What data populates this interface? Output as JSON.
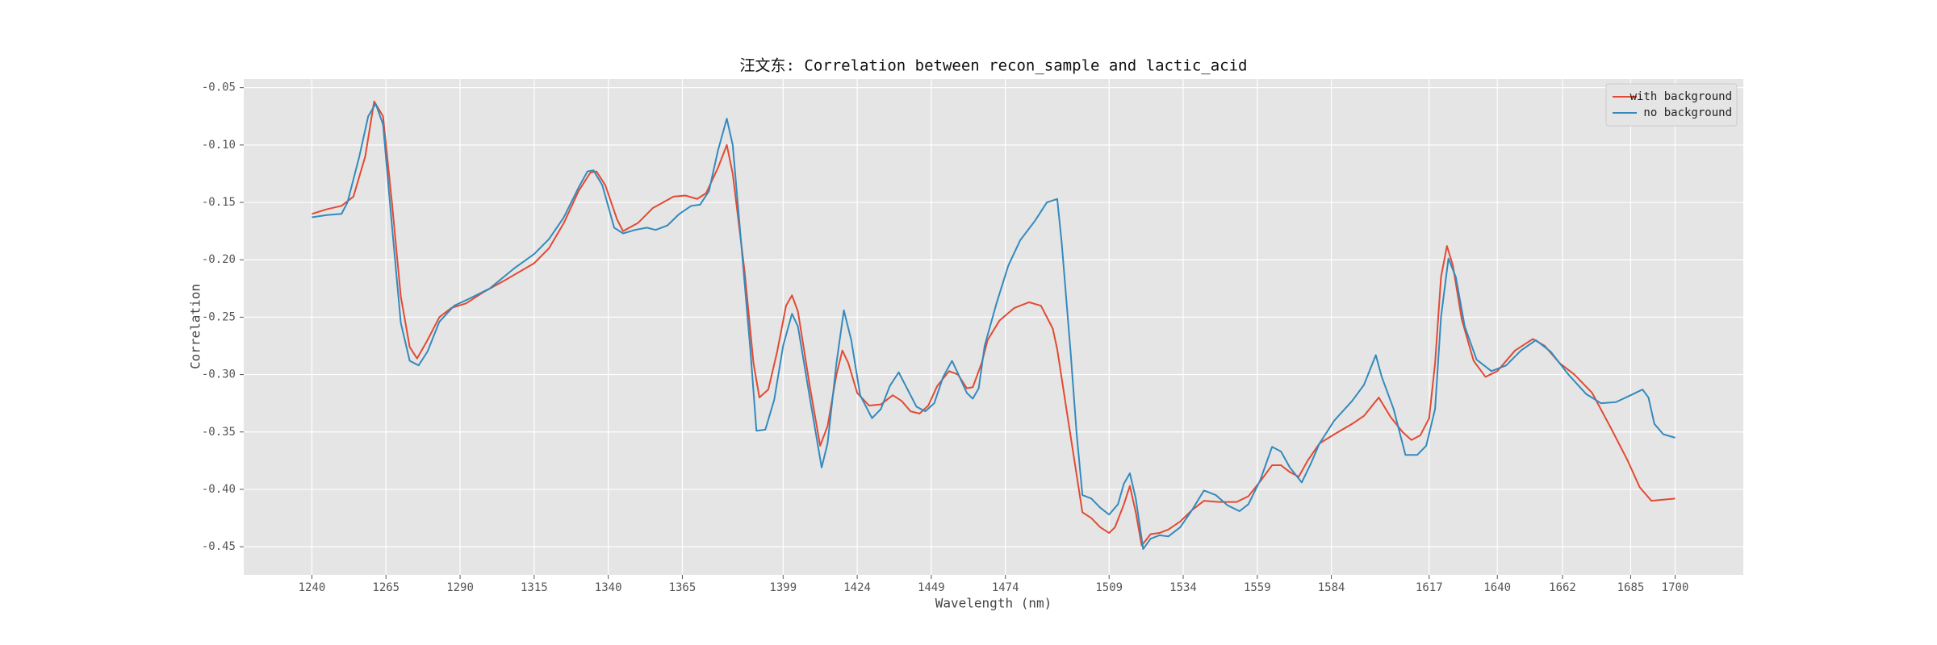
{
  "chart_data": {
    "type": "line",
    "title": "汪文东: Correlation between recon_sample and lactic_acid",
    "xlabel": "Wavelength (nm)",
    "ylabel": "Correlation",
    "xlim": [
      1217,
      1723
    ],
    "ylim": [
      -0.4745,
      -0.0425
    ],
    "xticks": [
      1240,
      1265,
      1290,
      1315,
      1340,
      1365,
      1399,
      1424,
      1449,
      1474,
      1509,
      1534,
      1559,
      1584,
      1617,
      1640,
      1662,
      1685,
      1700
    ],
    "yticks": [
      -0.05,
      {
        "value": -0.1,
        "label": "-0.10"
      },
      -0.15,
      {
        "value": -0.2,
        "label": "-0.20"
      },
      -0.25,
      {
        "value": -0.3,
        "label": "-0.30"
      },
      -0.35,
      {
        "value": -0.4,
        "label": "-0.40"
      },
      -0.45
    ],
    "grid": true,
    "legend": "upper right",
    "series": [
      {
        "name": "with background",
        "color": "#E24A33",
        "x": [
          1240,
          1245,
          1250,
          1254,
          1258,
          1261,
          1264,
          1267,
          1270,
          1273,
          1275.5,
          1279,
          1283,
          1287,
          1292,
          1298,
          1305,
          1315,
          1320,
          1325,
          1330,
          1334,
          1336,
          1339,
          1343,
          1345,
          1350,
          1355,
          1362,
          1366,
          1370,
          1373,
          1377,
          1380,
          1382,
          1386,
          1389,
          1391,
          1394,
          1397,
          1400,
          1402,
          1404,
          1408,
          1411.5,
          1414,
          1417,
          1419,
          1421,
          1424,
          1428,
          1432,
          1436,
          1439,
          1442,
          1445,
          1448,
          1451,
          1455,
          1458,
          1461,
          1463,
          1466,
          1468,
          1472,
          1477,
          1482,
          1486,
          1490,
          1491.5,
          1494,
          1497,
          1500,
          1503,
          1506,
          1509,
          1511,
          1514,
          1516,
          1518,
          1520,
          1523,
          1526,
          1529,
          1533,
          1537,
          1541,
          1546,
          1552,
          1556,
          1560,
          1564,
          1567,
          1570,
          1573,
          1576,
          1580,
          1585,
          1591,
          1595,
          1600,
          1604,
          1608,
          1611,
          1614,
          1617,
          1619,
          1621,
          1623,
          1625,
          1628,
          1632,
          1636,
          1640,
          1646,
          1652,
          1656,
          1661,
          1666,
          1672,
          1678,
          1684,
          1688,
          1692,
          1696,
          1700
        ],
        "values": [
          -0.16,
          -0.156,
          -0.153,
          -0.145,
          -0.11,
          -0.062,
          -0.075,
          -0.15,
          -0.232,
          -0.276,
          -0.286,
          -0.27,
          -0.25,
          -0.242,
          -0.238,
          -0.228,
          -0.218,
          -0.203,
          -0.19,
          -0.168,
          -0.14,
          -0.124,
          -0.123,
          -0.135,
          -0.165,
          -0.175,
          -0.168,
          -0.155,
          -0.145,
          -0.144,
          -0.147,
          -0.142,
          -0.12,
          -0.1,
          -0.125,
          -0.21,
          -0.29,
          -0.32,
          -0.313,
          -0.28,
          -0.24,
          -0.231,
          -0.245,
          -0.31,
          -0.362,
          -0.345,
          -0.3,
          -0.279,
          -0.29,
          -0.316,
          -0.327,
          -0.326,
          -0.318,
          -0.323,
          -0.332,
          -0.334,
          -0.327,
          -0.31,
          -0.297,
          -0.3,
          -0.312,
          -0.311,
          -0.29,
          -0.27,
          -0.253,
          -0.242,
          -0.237,
          -0.24,
          -0.26,
          -0.278,
          -0.32,
          -0.37,
          -0.42,
          -0.425,
          -0.433,
          -0.438,
          -0.433,
          -0.413,
          -0.397,
          -0.42,
          -0.449,
          -0.439,
          -0.438,
          -0.435,
          -0.428,
          -0.418,
          -0.41,
          -0.411,
          -0.411,
          -0.406,
          -0.393,
          -0.379,
          -0.379,
          -0.385,
          -0.389,
          -0.375,
          -0.36,
          -0.352,
          -0.343,
          -0.336,
          -0.32,
          -0.337,
          -0.35,
          -0.357,
          -0.353,
          -0.338,
          -0.29,
          -0.215,
          -0.188,
          -0.205,
          -0.252,
          -0.288,
          -0.302,
          -0.297,
          -0.279,
          -0.269,
          -0.275,
          -0.29,
          -0.3,
          -0.316,
          -0.345,
          -0.375,
          -0.398,
          -0.41,
          -0.409,
          -0.408
        ]
      },
      {
        "name": "no background",
        "color": "#348ABD",
        "x": [
          1240,
          1245,
          1250,
          1252,
          1256,
          1259,
          1261.5,
          1264,
          1267,
          1270,
          1273,
          1276,
          1279,
          1283,
          1288,
          1293,
          1300,
          1308,
          1315,
          1320,
          1325,
          1330,
          1333,
          1335,
          1338,
          1342,
          1345,
          1349,
          1353,
          1356,
          1360,
          1364,
          1368,
          1371,
          1374,
          1377,
          1380,
          1382,
          1385,
          1388,
          1390,
          1393,
          1396,
          1399,
          1402,
          1404,
          1408,
          1412,
          1414,
          1417,
          1419.5,
          1422,
          1425,
          1429,
          1432,
          1435,
          1438,
          1441,
          1444,
          1447,
          1450,
          1453,
          1456,
          1458,
          1461,
          1463,
          1465,
          1467,
          1471,
          1475,
          1479,
          1484,
          1488,
          1491.5,
          1493,
          1496,
          1498,
          1500,
          1503,
          1506,
          1509,
          1512,
          1514,
          1516,
          1518,
          1520.5,
          1523,
          1526,
          1529,
          1533,
          1537,
          1541,
          1545,
          1549,
          1553,
          1556,
          1560,
          1564,
          1567,
          1570,
          1574,
          1577,
          1580,
          1585,
          1591,
          1595,
          1599,
          1601,
          1605,
          1609,
          1613,
          1616,
          1619,
          1621,
          1623.5,
          1626,
          1629,
          1633,
          1638,
          1643,
          1648,
          1653,
          1658,
          1664,
          1670,
          1675,
          1680,
          1685,
          1689,
          1691,
          1693,
          1696,
          1700
        ],
        "values": [
          -0.163,
          -0.161,
          -0.16,
          -0.15,
          -0.11,
          -0.075,
          -0.064,
          -0.082,
          -0.17,
          -0.255,
          -0.288,
          -0.292,
          -0.28,
          -0.254,
          -0.24,
          -0.234,
          -0.225,
          -0.208,
          -0.195,
          -0.182,
          -0.163,
          -0.137,
          -0.123,
          -0.122,
          -0.135,
          -0.172,
          -0.177,
          -0.174,
          -0.172,
          -0.174,
          -0.17,
          -0.16,
          -0.153,
          -0.152,
          -0.14,
          -0.105,
          -0.077,
          -0.1,
          -0.19,
          -0.28,
          -0.349,
          -0.348,
          -0.322,
          -0.275,
          -0.247,
          -0.258,
          -0.32,
          -0.381,
          -0.36,
          -0.29,
          -0.244,
          -0.27,
          -0.318,
          -0.338,
          -0.33,
          -0.31,
          -0.298,
          -0.313,
          -0.328,
          -0.332,
          -0.325,
          -0.302,
          -0.288,
          -0.299,
          -0.316,
          -0.321,
          -0.312,
          -0.275,
          -0.238,
          -0.205,
          -0.183,
          -0.166,
          -0.15,
          -0.147,
          -0.185,
          -0.28,
          -0.35,
          -0.405,
          -0.408,
          -0.416,
          -0.422,
          -0.413,
          -0.395,
          -0.386,
          -0.408,
          -0.452,
          -0.443,
          -0.44,
          -0.441,
          -0.433,
          -0.418,
          -0.401,
          -0.405,
          -0.414,
          -0.419,
          -0.413,
          -0.392,
          -0.363,
          -0.367,
          -0.381,
          -0.394,
          -0.378,
          -0.36,
          -0.34,
          -0.323,
          -0.309,
          -0.283,
          -0.302,
          -0.33,
          -0.37,
          -0.37,
          -0.362,
          -0.33,
          -0.25,
          -0.199,
          -0.215,
          -0.258,
          -0.287,
          -0.297,
          -0.292,
          -0.279,
          -0.27,
          -0.28,
          -0.3,
          -0.317,
          -0.325,
          -0.324,
          -0.318,
          -0.313,
          -0.32,
          -0.343,
          -0.352,
          -0.355
        ]
      }
    ]
  }
}
